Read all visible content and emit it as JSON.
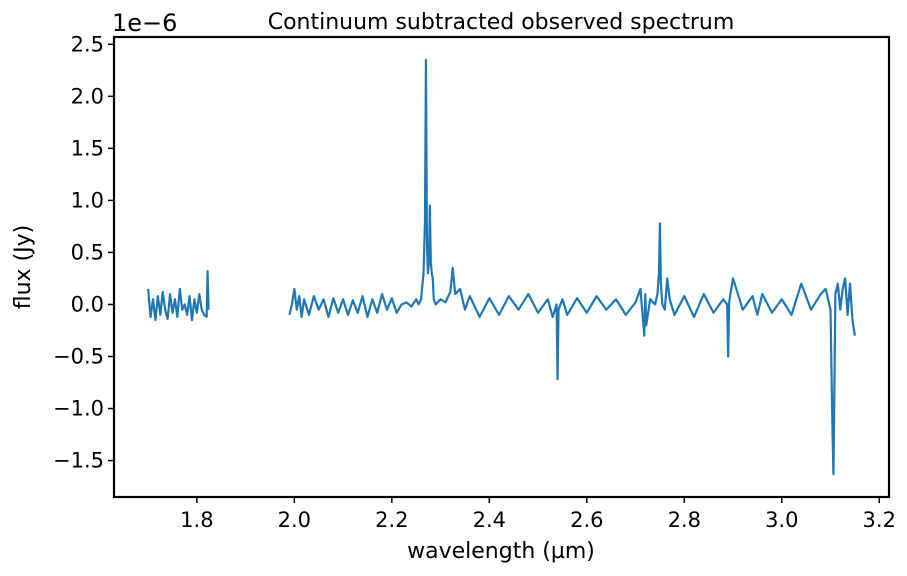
{
  "chart_data": {
    "type": "line",
    "title": "Continuum subtracted observed spectrum",
    "xlabel": "wavelength (µm)",
    "ylabel": "flux (Jy)",
    "y_offset_label": "1e−6",
    "y_scale": 1e-06,
    "xlim": [
      1.63,
      3.22
    ],
    "ylim": [
      -1.85,
      2.57
    ],
    "xticks": [
      1.8,
      2.0,
      2.2,
      2.4,
      2.6,
      2.8,
      3.0,
      3.2
    ],
    "xtick_labels": [
      "1.8",
      "2.0",
      "2.2",
      "2.4",
      "2.6",
      "2.8",
      "3.0",
      "3.2"
    ],
    "yticks": [
      -1.5,
      -1.0,
      -0.5,
      0.0,
      0.5,
      1.0,
      1.5,
      2.0,
      2.5
    ],
    "ytick_labels": [
      "−1.5",
      "−1.0",
      "−0.5",
      "0.0",
      "0.5",
      "1.0",
      "1.5",
      "2.0",
      "2.5"
    ],
    "grid": false,
    "line_color": "#1f77b4",
    "series": [
      {
        "segments": [
          {
            "x": [
              1.7,
              1.705,
              1.71,
              1.715,
              1.72,
              1.725,
              1.73,
              1.735,
              1.74,
              1.745,
              1.75,
              1.755,
              1.76,
              1.765,
              1.77,
              1.775,
              1.78,
              1.785,
              1.79,
              1.795,
              1.8,
              1.805,
              1.81,
              1.815,
              1.82,
              1.822,
              1.824
            ],
            "y": [
              0.15,
              -0.12,
              0.05,
              -0.15,
              0.08,
              -0.1,
              0.12,
              -0.05,
              -0.14,
              0.1,
              -0.08,
              0.05,
              -0.12,
              0.15,
              -0.05,
              0.0,
              -0.1,
              0.08,
              -0.15,
              0.05,
              -0.08,
              0.1,
              -0.05,
              -0.1,
              -0.12,
              0.32,
              -0.05
            ]
          },
          {
            "x": [
              1.99,
              1.995,
              2.0,
              2.005,
              2.01,
              2.015,
              2.02,
              2.03,
              2.04,
              2.05,
              2.06,
              2.07,
              2.08,
              2.09,
              2.1,
              2.11,
              2.12,
              2.13,
              2.14,
              2.15,
              2.16,
              2.17,
              2.18,
              2.19,
              2.2,
              2.21,
              2.22,
              2.23,
              2.24,
              2.25,
              2.255,
              2.26,
              2.265,
              2.268,
              2.27,
              2.272,
              2.274,
              2.276,
              2.278,
              2.28,
              2.282,
              2.284,
              2.286,
              2.29,
              2.3,
              2.31,
              2.32,
              2.325,
              2.33,
              2.34,
              2.35,
              2.36,
              2.38,
              2.4,
              2.42,
              2.44,
              2.46,
              2.48,
              2.5,
              2.52,
              2.53,
              2.538,
              2.54,
              2.542,
              2.55,
              2.56,
              2.58,
              2.6,
              2.62,
              2.64,
              2.66,
              2.68,
              2.7,
              2.71,
              2.718,
              2.72,
              2.722,
              2.73,
              2.74,
              2.745,
              2.748,
              2.75,
              2.752,
              2.755,
              2.76,
              2.765,
              2.77,
              2.78,
              2.8,
              2.82,
              2.84,
              2.86,
              2.88,
              2.888,
              2.89,
              2.892,
              2.9,
              2.92,
              2.94,
              2.95,
              2.96,
              2.98,
              3.0,
              3.02,
              3.04,
              3.06,
              3.08,
              3.09,
              3.1,
              3.104,
              3.106,
              3.108,
              3.11,
              3.115,
              3.12,
              3.125,
              3.13,
              3.135,
              3.14,
              3.145,
              3.15
            ],
            "y": [
              -0.1,
              0.0,
              0.15,
              -0.05,
              0.08,
              -0.12,
              0.05,
              -0.1,
              0.08,
              -0.05,
              0.05,
              -0.12,
              0.06,
              -0.08,
              0.05,
              -0.1,
              0.04,
              -0.08,
              0.08,
              -0.12,
              0.05,
              -0.08,
              0.1,
              -0.05,
              0.06,
              -0.08,
              0.0,
              0.02,
              -0.02,
              0.05,
              0.0,
              0.05,
              0.3,
              0.8,
              2.35,
              0.6,
              0.3,
              0.4,
              0.95,
              0.4,
              0.3,
              0.25,
              0.05,
              0.0,
              0.05,
              0.02,
              0.12,
              0.35,
              0.1,
              0.15,
              -0.05,
              0.08,
              -0.12,
              0.06,
              -0.1,
              0.08,
              -0.05,
              0.1,
              -0.08,
              0.05,
              -0.12,
              0.0,
              -0.72,
              -0.05,
              0.05,
              -0.1,
              0.06,
              -0.08,
              0.08,
              -0.05,
              0.05,
              -0.1,
              0.02,
              0.15,
              -0.3,
              0.1,
              -0.2,
              0.05,
              0.0,
              0.1,
              0.3,
              0.78,
              0.2,
              0.0,
              -0.05,
              0.25,
              0.05,
              -0.1,
              0.08,
              -0.12,
              0.1,
              -0.08,
              0.05,
              0.0,
              -0.5,
              0.02,
              0.25,
              -0.05,
              0.08,
              -0.1,
              0.1,
              -0.08,
              0.05,
              -0.1,
              0.2,
              -0.05,
              0.1,
              0.15,
              -0.05,
              -1.2,
              -1.63,
              -0.8,
              0.1,
              0.2,
              -0.05,
              0.15,
              0.25,
              -0.1,
              0.2,
              -0.15,
              -0.3
            ]
          }
        ]
      }
    ]
  }
}
